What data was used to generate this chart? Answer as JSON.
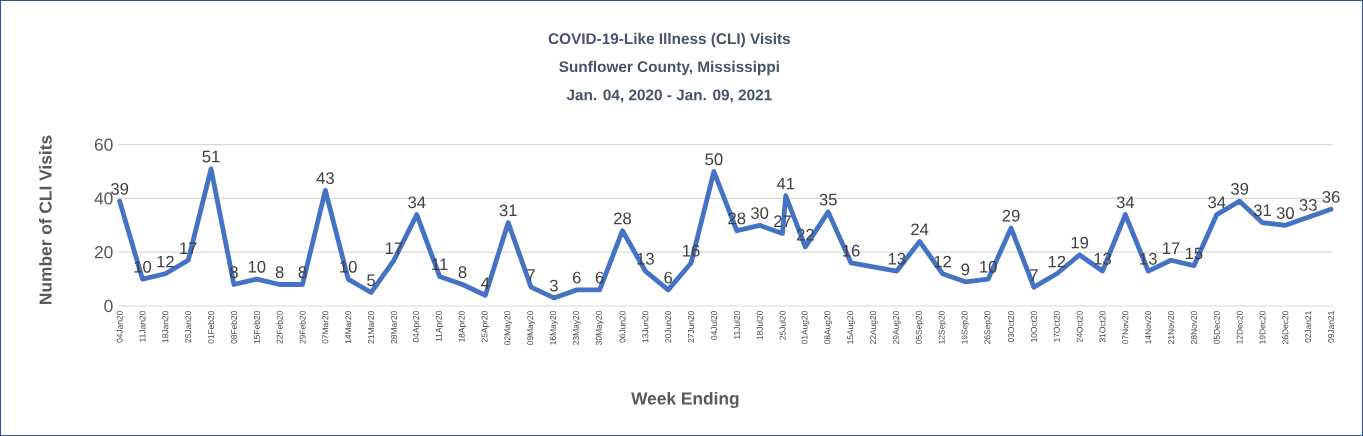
{
  "chart_data": {
    "type": "line",
    "title": "COVID-19-Like Illness (CLI) Visits",
    "subtitle": "Sunflower County, Mississippi",
    "annotations": [
      "Jan. 04, 2020 - Jan. 09, 2021"
    ],
    "xlabel": "Week Ending",
    "ylabel": "Number of CLI Visits",
    "x": [
      "2020-01-04",
      "2020-01-11",
      "2020-01-18",
      "2020-01-25",
      "2020-02-01",
      "2020-02-08",
      "2020-02-15",
      "2020-02-22",
      "2020-02-29",
      "2020-03-07",
      "2020-03-14",
      "2020-03-21",
      "2020-03-28",
      "2020-04-04",
      "2020-04-11",
      "2020-04-18",
      "2020-04-25",
      "2020-05-02",
      "2020-05-09",
      "2020-05-16",
      "2020-05-23",
      "2020-05-30",
      "2020-06-06",
      "2020-06-13",
      "2020-06-20",
      "2020-06-27",
      "2020-07-04",
      "2020-07-11",
      "2020-07-18",
      "2020-07-25",
      "2020-07-26",
      "2020-08-01",
      "2020-08-08",
      "2020-08-15",
      "2020-08-29",
      "2020-09-05",
      "2020-09-12",
      "2020-09-19",
      "2020-09-26",
      "2020-10-03",
      "2020-10-10",
      "2020-10-17",
      "2020-10-24",
      "2020-10-31",
      "2020-11-07",
      "2020-11-14",
      "2020-11-21",
      "2020-11-28",
      "2020-12-05",
      "2020-12-12",
      "2020-12-19",
      "2020-12-26",
      "2021-01-02",
      "2021-01-09"
    ],
    "values": [
      39,
      10,
      12,
      17,
      51,
      8,
      10,
      8,
      8,
      43,
      10,
      5,
      17,
      34,
      11,
      8,
      4,
      31,
      7,
      3,
      6,
      6,
      28,
      13,
      6,
      16,
      50,
      28,
      30,
      27,
      41,
      22,
      35,
      16,
      13,
      24,
      12,
      9,
      10,
      29,
      7,
      12,
      19,
      13,
      34,
      13,
      17,
      15,
      34,
      39,
      31,
      30,
      33,
      36
    ],
    "color": "#4472c4",
    "data_labels": true,
    "marker": "none",
    "line_style": "solid",
    "grid": "y",
    "xlim": [
      "2020-01-04",
      "2021-01-09"
    ],
    "xticks": [
      {
        "value": "2020-01-04",
        "label": "04Jan20"
      },
      {
        "value": "2020-01-11",
        "label": "11Jan20"
      },
      {
        "value": "2020-01-18",
        "label": "18Jan20"
      },
      {
        "value": "2020-01-25",
        "label": "25Jan20"
      },
      {
        "value": "2020-02-01",
        "label": "01Feb20"
      },
      {
        "value": "2020-02-08",
        "label": "08Feb20"
      },
      {
        "value": "2020-02-15",
        "label": "15Feb20"
      },
      {
        "value": "2020-02-22",
        "label": "22Feb20"
      },
      {
        "value": "2020-02-29",
        "label": "29Feb20"
      },
      {
        "value": "2020-03-07",
        "label": "07Mar20"
      },
      {
        "value": "2020-03-14",
        "label": "14Mar20"
      },
      {
        "value": "2020-03-21",
        "label": "21Mar20"
      },
      {
        "value": "2020-03-28",
        "label": "28Mar20"
      },
      {
        "value": "2020-04-04",
        "label": "04Apr20"
      },
      {
        "value": "2020-04-11",
        "label": "11Apr20"
      },
      {
        "value": "2020-04-18",
        "label": "18Apr20"
      },
      {
        "value": "2020-04-25",
        "label": "25Apr20"
      },
      {
        "value": "2020-05-02",
        "label": "02May20"
      },
      {
        "value": "2020-05-09",
        "label": "09May20"
      },
      {
        "value": "2020-05-16",
        "label": "16May20"
      },
      {
        "value": "2020-05-23",
        "label": "23May20"
      },
      {
        "value": "2020-05-30",
        "label": "30May20"
      },
      {
        "value": "2020-06-06",
        "label": "06Jun20"
      },
      {
        "value": "2020-06-13",
        "label": "13Jun20"
      },
      {
        "value": "2020-06-20",
        "label": "20Jun20"
      },
      {
        "value": "2020-06-27",
        "label": "27Jun20"
      },
      {
        "value": "2020-07-04",
        "label": "04Jul20"
      },
      {
        "value": "2020-07-11",
        "label": "11Jul20"
      },
      {
        "value": "2020-07-18",
        "label": "18Jul20"
      },
      {
        "value": "2020-07-25",
        "label": "25Jul20"
      },
      {
        "value": "2020-08-01",
        "label": "01Aug20"
      },
      {
        "value": "2020-08-08",
        "label": "08Aug20"
      },
      {
        "value": "2020-08-15",
        "label": "15Aug20"
      },
      {
        "value": "2020-08-22",
        "label": "22Aug20"
      },
      {
        "value": "2020-08-29",
        "label": "29Aug20"
      },
      {
        "value": "2020-09-05",
        "label": "05Sep20"
      },
      {
        "value": "2020-09-12",
        "label": "12Sep20"
      },
      {
        "value": "2020-09-19",
        "label": "19Sep20"
      },
      {
        "value": "2020-09-26",
        "label": "26Sep20"
      },
      {
        "value": "2020-10-03",
        "label": "03Oct20"
      },
      {
        "value": "2020-10-10",
        "label": "10Oct20"
      },
      {
        "value": "2020-10-17",
        "label": "17Oct20"
      },
      {
        "value": "2020-10-24",
        "label": "24Oct20"
      },
      {
        "value": "2020-10-31",
        "label": "31Oct20"
      },
      {
        "value": "2020-11-07",
        "label": "07Nov20"
      },
      {
        "value": "2020-11-14",
        "label": "14Nov20"
      },
      {
        "value": "2020-11-21",
        "label": "21Nov20"
      },
      {
        "value": "2020-11-28",
        "label": "28Nov20"
      },
      {
        "value": "2020-12-05",
        "label": "05Dec20"
      },
      {
        "value": "2020-12-12",
        "label": "12Dec20"
      },
      {
        "value": "2020-12-19",
        "label": "19Dec20"
      },
      {
        "value": "2020-12-26",
        "label": "26Dec20"
      },
      {
        "value": "2021-01-02",
        "label": "02Jan21"
      },
      {
        "value": "2021-01-09",
        "label": "09Jan21"
      }
    ],
    "ylim": [
      0,
      60
    ],
    "yticks": [
      0,
      20,
      40,
      60
    ]
  }
}
